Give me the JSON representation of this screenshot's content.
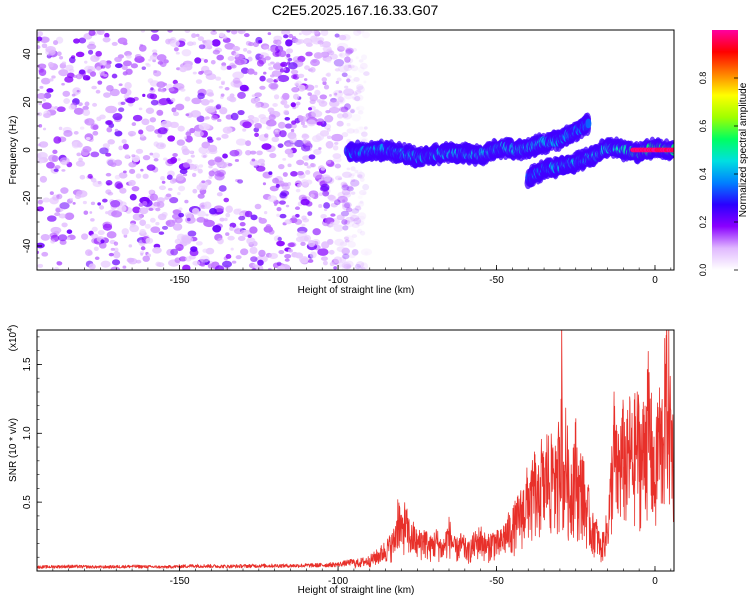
{
  "title": "C2E5.2025.167.16.33.G07",
  "chart_data": [
    {
      "type": "heatmap",
      "title": "C2E5.2025.167.16.33.G07",
      "xlabel": "Height of straight line (km)",
      "ylabel": "Frequency (Hz)",
      "xlim": [
        -195,
        6
      ],
      "ylim": [
        -50,
        50
      ],
      "x_ticks": [
        -150,
        -100,
        -50,
        0
      ],
      "x_tick_labels": [
        "-150",
        "-100",
        "-50",
        "0"
      ],
      "y_ticks": [
        -40,
        -20,
        0,
        20,
        40
      ],
      "y_tick_labels": [
        "-40",
        "-20",
        "0",
        "20",
        "40"
      ],
      "colorbar": {
        "label": "Normalized spectral amplitude",
        "range": [
          0,
          1
        ],
        "ticks": [
          0.0,
          0.2,
          0.4,
          0.6,
          0.8
        ],
        "tick_labels": [
          "0.0",
          "0.2",
          "0.4",
          "0.6",
          "0.8"
        ],
        "colors": [
          "#ffffff",
          "#e0b8ff",
          "#8a00ff",
          "#2a00ff",
          "#0080ff",
          "#00e0e0",
          "#00ff60",
          "#a0ff00",
          "#ffff00",
          "#ff8000",
          "#ff0000",
          "#ff00a0"
        ]
      },
      "noise_region": {
        "x_range": [
          -195,
          -97
        ],
        "y_range": [
          -50,
          50
        ],
        "typical_amplitude": 0.05
      },
      "ridges": [
        {
          "name": "upper track",
          "x": [
            -97,
            -85,
            -75,
            -65,
            -55,
            -48,
            -42,
            -35,
            -30,
            -25,
            -21
          ],
          "y": [
            -1,
            0,
            -3,
            -1,
            -2,
            1,
            0,
            3,
            4,
            8,
            11
          ],
          "amplitude": [
            0.3,
            0.4,
            0.45,
            0.5,
            0.5,
            0.55,
            0.5,
            0.45,
            0.4,
            0.3,
            0.2
          ]
        },
        {
          "name": "lower track",
          "x": [
            -40,
            -35,
            -30,
            -25,
            -20,
            -15,
            -10,
            -5,
            0,
            3,
            6
          ],
          "y": [
            -12,
            -8,
            -7,
            -5,
            -3,
            1,
            0,
            -1,
            1,
            0,
            0
          ],
          "amplitude": [
            0.25,
            0.35,
            0.45,
            0.5,
            0.55,
            0.6,
            0.7,
            0.85,
            0.95,
            0.9,
            0.9
          ]
        }
      ]
    },
    {
      "type": "line",
      "xlabel": "Height of straight line (km)",
      "ylabel": "SNR (10 * v/v)",
      "y_scale_label": "(x10",
      "y_scale_exponent": "4",
      "xlim": [
        -195,
        6
      ],
      "ylim": [
        0,
        1.75
      ],
      "x_ticks": [
        -150,
        -100,
        -50,
        0
      ],
      "x_tick_labels": [
        "-150",
        "-100",
        "-50",
        "0"
      ],
      "y_ticks": [
        0.5,
        1.0,
        1.5
      ],
      "y_tick_labels": [
        "0.5",
        "1.0",
        "1.5"
      ],
      "series": [
        {
          "name": "SNR",
          "color": "#e8302a",
          "x": [
            -195,
            -185,
            -175,
            -165,
            -155,
            -145,
            -135,
            -125,
            -115,
            -105,
            -100,
            -95,
            -90,
            -87,
            -85,
            -83,
            -82,
            -81,
            -80,
            -79,
            -78,
            -77,
            -76,
            -75,
            -73,
            -71,
            -69,
            -67,
            -65,
            -63,
            -61,
            -59,
            -57,
            -55,
            -53,
            -51,
            -49,
            -47,
            -45,
            -43,
            -41,
            -40,
            -39,
            -38,
            -37,
            -36,
            -35,
            -34,
            -33,
            -32,
            -31,
            -30,
            -29.5,
            -29,
            -28,
            -27,
            -26,
            -25,
            -24,
            -23,
            -22,
            -21,
            -20,
            -19,
            -18,
            -17,
            -16,
            -15,
            -14,
            -13,
            -12,
            -11,
            -10,
            -9,
            -8,
            -7,
            -6,
            -5,
            -4,
            -3,
            -2,
            -1,
            0,
            1,
            2,
            3,
            4,
            5,
            6
          ],
          "y": [
            0.03,
            0.035,
            0.03,
            0.035,
            0.03,
            0.04,
            0.035,
            0.04,
            0.04,
            0.045,
            0.05,
            0.07,
            0.1,
            0.15,
            0.2,
            0.25,
            0.3,
            0.55,
            0.35,
            0.45,
            0.38,
            0.3,
            0.32,
            0.25,
            0.3,
            0.22,
            0.28,
            0.2,
            0.35,
            0.2,
            0.25,
            0.18,
            0.25,
            0.3,
            0.22,
            0.28,
            0.25,
            0.35,
            0.4,
            0.5,
            0.6,
            0.7,
            0.65,
            0.8,
            0.6,
            0.9,
            0.75,
            0.95,
            0.8,
            1.05,
            0.7,
            1.25,
            1.75,
            0.8,
            1.1,
            0.65,
            0.9,
            1.0,
            0.7,
            0.85,
            0.6,
            0.55,
            0.35,
            0.4,
            0.3,
            0.2,
            0.3,
            0.4,
            0.7,
            1.2,
            0.9,
            1.0,
            1.1,
            0.95,
            1.15,
            1.0,
            1.2,
            1.15,
            1.05,
            1.3,
            1.4,
            1.1,
            0.75,
            1.3,
            1.15,
            1.45,
            1.7,
            1.25,
            1.1
          ]
        }
      ]
    }
  ]
}
